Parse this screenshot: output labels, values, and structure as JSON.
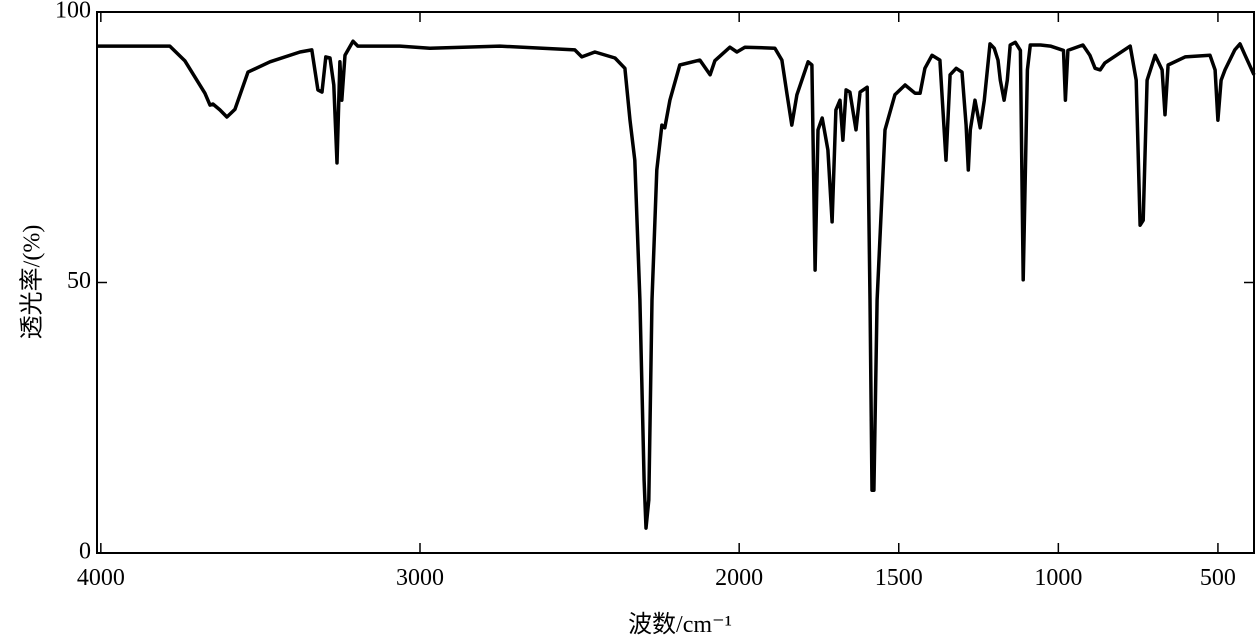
{
  "chart_data": {
    "type": "line",
    "x_label": "波数/cm⁻¹",
    "y_label": "透光率/(%)",
    "xlim": [
      4012,
      387
    ],
    "ylim": [
      0,
      100
    ],
    "xticks": [
      4000,
      3000,
      2000,
      1500,
      1000,
      500
    ],
    "yticks": [
      0,
      50,
      100
    ],
    "series": [
      {
        "color": "#000000",
        "x": [
          4012,
          3784,
          3737,
          3674,
          3658,
          3649,
          3627,
          3605,
          3580,
          3539,
          3470,
          3376,
          3339,
          3320,
          3307,
          3295,
          3282,
          3270,
          3260,
          3251,
          3245,
          3235,
          3210,
          3195,
          3063,
          2969,
          2750,
          2515,
          2493,
          2452,
          2389,
          2358,
          2342,
          2327,
          2311,
          2298,
          2292,
          2283,
          2273,
          2258,
          2242,
          2233,
          2217,
          2186,
          2123,
          2091,
          2076,
          2029,
          2007,
          1982,
          1888,
          1866,
          1850,
          1835,
          1819,
          1784,
          1772,
          1762,
          1753,
          1740,
          1722,
          1709,
          1697,
          1684,
          1675,
          1665,
          1653,
          1634,
          1621,
          1599,
          1590,
          1584,
          1578,
          1568,
          1543,
          1512,
          1480,
          1449,
          1433,
          1418,
          1396,
          1371,
          1352,
          1339,
          1320,
          1302,
          1289,
          1282,
          1276,
          1261,
          1245,
          1232,
          1214,
          1201,
          1189,
          1182,
          1170,
          1160,
          1151,
          1135,
          1119,
          1110,
          1097,
          1088,
          1056,
          1025,
          984,
          978,
          970,
          923,
          901,
          885,
          869,
          854,
          775,
          756,
          744,
          734,
          722,
          697,
          675,
          666,
          656,
          603,
          525,
          509,
          500,
          490,
          478,
          447,
          431,
          415,
          387
        ],
        "values": [
          93.7,
          93.7,
          91,
          85,
          82.8,
          83,
          81.9,
          80.6,
          82,
          88.9,
          90.8,
          92.6,
          93,
          85.6,
          85.2,
          91.7,
          91.5,
          86.5,
          72.1,
          90.8,
          83.7,
          92,
          94.6,
          93.7,
          93.7,
          93.3,
          93.7,
          93,
          91.7,
          92.6,
          91.5,
          89.6,
          80,
          72.6,
          46.8,
          13.5,
          4.6,
          9.8,
          46.8,
          70.8,
          79.1,
          78.6,
          83.7,
          90.2,
          91.1,
          88.4,
          91,
          93.5,
          92.6,
          93.5,
          93.3,
          91.1,
          84.7,
          79.1,
          84.7,
          90.8,
          90.2,
          52.3,
          78.2,
          80.4,
          74.5,
          61.2,
          81.9,
          83.7,
          76.3,
          85.6,
          85.2,
          78.2,
          85.2,
          86.1,
          46.8,
          11.6,
          11.6,
          46.8,
          78.2,
          84.7,
          86.5,
          85,
          85,
          89.6,
          92,
          91.1,
          72.6,
          88.4,
          89.6,
          88.9,
          79.1,
          70.8,
          78.2,
          83.7,
          78.6,
          83.7,
          94.1,
          93.3,
          91.1,
          87.4,
          83.7,
          87.4,
          93.9,
          94.4,
          92.9,
          50.5,
          89.3,
          93.9,
          93.9,
          93.7,
          92.9,
          83.7,
          92.9,
          93.9,
          92,
          89.6,
          89.3,
          90.6,
          93.7,
          87.4,
          60.6,
          61.5,
          87.4,
          92,
          89.3,
          81,
          90.2,
          91.7,
          92,
          89.3,
          80,
          87.4,
          89.3,
          93,
          94.1,
          92,
          88.4
        ]
      }
    ]
  }
}
